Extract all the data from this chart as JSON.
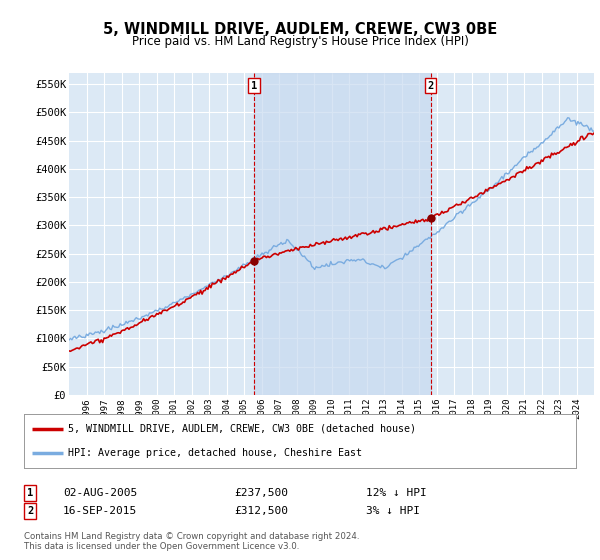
{
  "title": "5, WINDMILL DRIVE, AUDLEM, CREWE, CW3 0BE",
  "subtitle": "Price paid vs. HM Land Registry's House Price Index (HPI)",
  "ylabel_ticks": [
    "£0",
    "£50K",
    "£100K",
    "£150K",
    "£200K",
    "£250K",
    "£300K",
    "£350K",
    "£400K",
    "£450K",
    "£500K",
    "£550K"
  ],
  "ytick_vals": [
    0,
    50000,
    100000,
    150000,
    200000,
    250000,
    300000,
    350000,
    400000,
    450000,
    500000,
    550000
  ],
  "ylim": [
    0,
    570000
  ],
  "x_start_year": 1995,
  "x_end_year": 2025,
  "background_color": "#dce9f5",
  "grid_color": "#ffffff",
  "red_line_color": "#cc0000",
  "blue_line_color": "#7aace0",
  "shade_color": "#c8daf0",
  "sale1_date": "02-AUG-2005",
  "sale1_price": 237500,
  "sale1_label": "1",
  "sale1_hpi_diff": "12% ↓ HPI",
  "sale2_date": "16-SEP-2015",
  "sale2_price": 312500,
  "sale2_label": "2",
  "sale2_hpi_diff": "3% ↓ HPI",
  "legend_red": "5, WINDMILL DRIVE, AUDLEM, CREWE, CW3 0BE (detached house)",
  "legend_blue": "HPI: Average price, detached house, Cheshire East",
  "footer": "Contains HM Land Registry data © Crown copyright and database right 2024.\nThis data is licensed under the Open Government Licence v3.0."
}
